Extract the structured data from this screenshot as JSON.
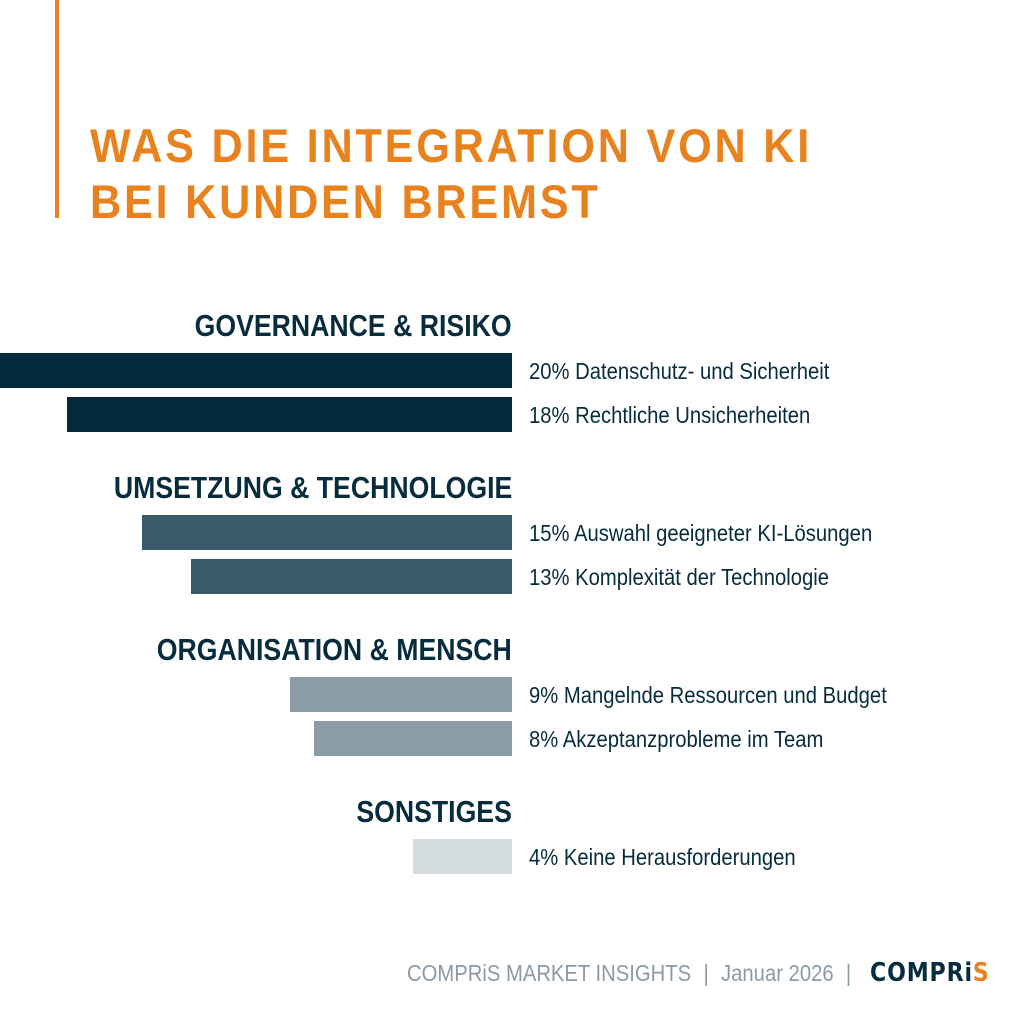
{
  "title": {
    "line1": "WAS DIE INTEGRATION VON KI",
    "line2": "BEI KUNDEN BREMST"
  },
  "chart_data": {
    "type": "bar",
    "orientation": "horizontal",
    "unit": "%",
    "groups": [
      {
        "heading": "GOVERNANCE & RISIKO",
        "color": "#022a3a",
        "items": [
          {
            "value": 20,
            "label": "20% Datenschutz- und Sicherheit"
          },
          {
            "value": 18,
            "label": "18% Rechtliche Unsicherheiten"
          }
        ]
      },
      {
        "heading": "UMSETZUNG & TECHNOLOGIE",
        "color": "#385a6a",
        "items": [
          {
            "value": 15,
            "label": "15% Auswahl geeigneter KI-Lösungen"
          },
          {
            "value": 13,
            "label": "13% Komplexität der Technologie"
          }
        ]
      },
      {
        "heading": "ORGANISATION & MENSCH",
        "color": "#8a9ca6",
        "items": [
          {
            "value": 9,
            "label": "9% Mangelnde Ressourcen und Budget"
          },
          {
            "value": 8,
            "label": "8% Akzeptanzprobleme im Team"
          }
        ]
      },
      {
        "heading": "SONSTIGES",
        "color": "#d5dde1",
        "items": [
          {
            "value": 4,
            "label": "4% Keine Herausforderungen"
          }
        ]
      }
    ]
  },
  "footer": {
    "source": "COMPRiS MARKET INSIGHTS",
    "separator": "|",
    "date": "Januar 2026",
    "logo_main": "COMPRi",
    "logo_accent": "S"
  },
  "colors": {
    "accent": "#e8821e",
    "dark": "#062c3d"
  }
}
